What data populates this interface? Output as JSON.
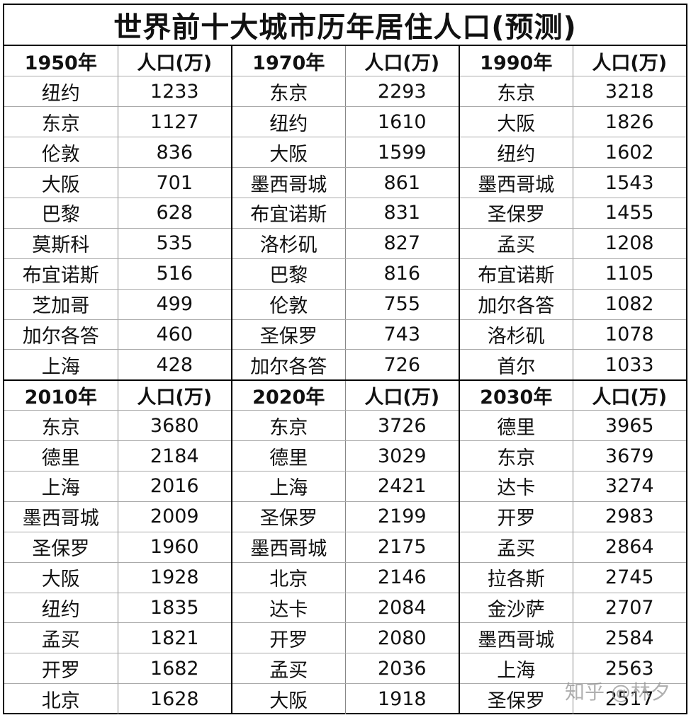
{
  "title": "世界前十大城市历年居住人口(预测)",
  "pop_header": "人口(万)",
  "watermark": "知乎 @林夕",
  "blocks": [
    {
      "years": [
        "1950年",
        "1970年",
        "1990年"
      ],
      "rows": [
        [
          [
            "纽约",
            "1233"
          ],
          [
            "东京",
            "2293"
          ],
          [
            "东京",
            "3218"
          ]
        ],
        [
          [
            "东京",
            "1127"
          ],
          [
            "纽约",
            "1610"
          ],
          [
            "大阪",
            "1826"
          ]
        ],
        [
          [
            "伦敦",
            "836"
          ],
          [
            "大阪",
            "1599"
          ],
          [
            "纽约",
            "1602"
          ]
        ],
        [
          [
            "大阪",
            "701"
          ],
          [
            "墨西哥城",
            "861"
          ],
          [
            "墨西哥城",
            "1543"
          ]
        ],
        [
          [
            "巴黎",
            "628"
          ],
          [
            "布宜诺斯",
            "831"
          ],
          [
            "圣保罗",
            "1455"
          ]
        ],
        [
          [
            "莫斯科",
            "535"
          ],
          [
            "洛杉矶",
            "827"
          ],
          [
            "孟买",
            "1208"
          ]
        ],
        [
          [
            "布宜诺斯",
            "516"
          ],
          [
            "巴黎",
            "816"
          ],
          [
            "布宜诺斯",
            "1105"
          ]
        ],
        [
          [
            "芝加哥",
            "499"
          ],
          [
            "伦敦",
            "755"
          ],
          [
            "加尔各答",
            "1082"
          ]
        ],
        [
          [
            "加尔各答",
            "460"
          ],
          [
            "圣保罗",
            "743"
          ],
          [
            "洛杉矶",
            "1078"
          ]
        ],
        [
          [
            "上海",
            "428"
          ],
          [
            "加尔各答",
            "726"
          ],
          [
            "首尔",
            "1033"
          ]
        ]
      ]
    },
    {
      "years": [
        "2010年",
        "2020年",
        "2030年"
      ],
      "rows": [
        [
          [
            "东京",
            "3680"
          ],
          [
            "东京",
            "3726"
          ],
          [
            "德里",
            "3965"
          ]
        ],
        [
          [
            "德里",
            "2184"
          ],
          [
            "德里",
            "3029"
          ],
          [
            "东京",
            "3679"
          ]
        ],
        [
          [
            "上海",
            "2016"
          ],
          [
            "上海",
            "2421"
          ],
          [
            "达卡",
            "3274"
          ]
        ],
        [
          [
            "墨西哥城",
            "2009"
          ],
          [
            "圣保罗",
            "2199"
          ],
          [
            "开罗",
            "2983"
          ]
        ],
        [
          [
            "圣保罗",
            "1960"
          ],
          [
            "墨西哥城",
            "2175"
          ],
          [
            "孟买",
            "2864"
          ]
        ],
        [
          [
            "大阪",
            "1928"
          ],
          [
            "北京",
            "2146"
          ],
          [
            "拉各斯",
            "2745"
          ]
        ],
        [
          [
            "纽约",
            "1835"
          ],
          [
            "达卡",
            "2084"
          ],
          [
            "金沙萨",
            "2707"
          ]
        ],
        [
          [
            "孟买",
            "1821"
          ],
          [
            "开罗",
            "2080"
          ],
          [
            "墨西哥城",
            "2584"
          ]
        ],
        [
          [
            "开罗",
            "1682"
          ],
          [
            "孟买",
            "2036"
          ],
          [
            "上海",
            "2563"
          ]
        ],
        [
          [
            "北京",
            "1628"
          ],
          [
            "大阪",
            "1918"
          ],
          [
            "圣保罗",
            "2517"
          ]
        ]
      ]
    }
  ]
}
